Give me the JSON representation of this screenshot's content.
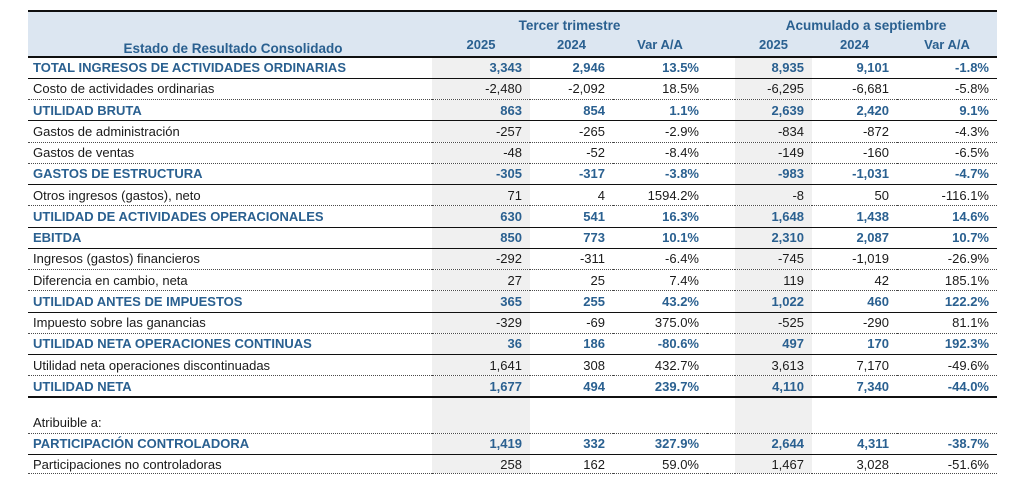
{
  "report": {
    "title": "Estado de Resultado Consolidado",
    "column_groups": [
      {
        "label": "Tercer trimestre",
        "columns": [
          "2025",
          "2024",
          "Var A/A"
        ]
      },
      {
        "label": "Acumulado a septiembre",
        "columns": [
          "2025",
          "2024",
          "Var A/A"
        ]
      }
    ],
    "colors": {
      "accent_blue": "#2A6090",
      "header_bg": "#DCE6F1",
      "stripe_gray": "#F0F0F0",
      "line_black": "#101010"
    },
    "rows": [
      {
        "label": "TOTAL INGRESOS DE ACTIVIDADES ORDINARIAS",
        "emphasis": "section",
        "border": "solid",
        "values": [
          "3,343",
          "2,946",
          "13.5%",
          "8,935",
          "9,101",
          "-1.8%"
        ]
      },
      {
        "label": "Costo de actividades ordinarias",
        "emphasis": "normal",
        "border": "dotted",
        "values": [
          "-2,480",
          "-2,092",
          "18.5%",
          "-6,295",
          "-6,681",
          "-5.8%"
        ]
      },
      {
        "label": "UTILIDAD BRUTA",
        "emphasis": "section",
        "border": "solid",
        "values": [
          "863",
          "854",
          "1.1%",
          "2,639",
          "2,420",
          "9.1%"
        ]
      },
      {
        "label": "Gastos de administración",
        "emphasis": "normal",
        "border": "dotted",
        "values": [
          "-257",
          "-265",
          "-2.9%",
          "-834",
          "-872",
          "-4.3%"
        ]
      },
      {
        "label": "Gastos de ventas",
        "emphasis": "normal",
        "border": "dotted",
        "values": [
          "-48",
          "-52",
          "-8.4%",
          "-149",
          "-160",
          "-6.5%"
        ]
      },
      {
        "label": "GASTOS DE ESTRUCTURA",
        "emphasis": "section",
        "border": "solid",
        "values": [
          "-305",
          "-317",
          "-3.8%",
          "-983",
          "-1,031",
          "-4.7%"
        ]
      },
      {
        "label": "Otros ingresos (gastos), neto",
        "emphasis": "normal",
        "border": "dotted",
        "values": [
          "71",
          "4",
          "1594.2%",
          "-8",
          "50",
          "-116.1%"
        ]
      },
      {
        "label": "UTILIDAD DE ACTIVIDADES OPERACIONALES",
        "emphasis": "section",
        "border": "solid",
        "values": [
          "630",
          "541",
          "16.3%",
          "1,648",
          "1,438",
          "14.6%"
        ]
      },
      {
        "label": "EBITDA",
        "emphasis": "section",
        "border": "solid",
        "values": [
          "850",
          "773",
          "10.1%",
          "2,310",
          "2,087",
          "10.7%"
        ]
      },
      {
        "label": "Ingresos (gastos) financieros",
        "emphasis": "normal",
        "border": "dotted",
        "values": [
          "-292",
          "-311",
          "-6.4%",
          "-745",
          "-1,019",
          "-26.9%"
        ]
      },
      {
        "label": "Diferencia en cambio, neta",
        "emphasis": "normal",
        "border": "dotted",
        "values": [
          "27",
          "25",
          "7.4%",
          "119",
          "42",
          "185.1%"
        ]
      },
      {
        "label": "UTILIDAD ANTES DE IMPUESTOS",
        "emphasis": "section",
        "border": "solid",
        "values": [
          "365",
          "255",
          "43.2%",
          "1,022",
          "460",
          "122.2%"
        ]
      },
      {
        "label": "Impuesto sobre las ganancias",
        "emphasis": "normal",
        "border": "dotted",
        "values": [
          "-329",
          "-69",
          "375.0%",
          "-525",
          "-290",
          "81.1%"
        ]
      },
      {
        "label": "UTILIDAD NETA OPERACIONES CONTINUAS",
        "emphasis": "section",
        "border": "solid",
        "values": [
          "36",
          "186",
          "-80.6%",
          "497",
          "170",
          "192.3%"
        ]
      },
      {
        "label": "Utilidad neta operaciones discontinuadas",
        "emphasis": "normal",
        "border": "dotted",
        "values": [
          "1,641",
          "308",
          "432.7%",
          "3,613",
          "7,170",
          "-49.6%"
        ]
      },
      {
        "label": "UTILIDAD NETA",
        "emphasis": "section",
        "border": "thick",
        "values": [
          "1,677",
          "494",
          "239.7%",
          "4,110",
          "7,340",
          "-44.0%"
        ]
      },
      {
        "label": "",
        "emphasis": "gap",
        "border": "none",
        "values": [
          "",
          "",
          "",
          "",
          "",
          ""
        ]
      },
      {
        "label": "Atribuible a:",
        "emphasis": "normal",
        "border": "dotted",
        "values": [
          "",
          "",
          "",
          "",
          "",
          ""
        ]
      },
      {
        "label": "PARTICIPACIÓN CONTROLADORA",
        "emphasis": "section",
        "border": "solid",
        "values": [
          "1,419",
          "332",
          "327.9%",
          "2,644",
          "4,311",
          "-38.7%"
        ]
      },
      {
        "label": "Participaciones no controladoras",
        "emphasis": "normal",
        "border": "dotted",
        "values": [
          "258",
          "162",
          "59.0%",
          "1,467",
          "3,028",
          "-51.6%"
        ],
        "short": true
      }
    ]
  }
}
